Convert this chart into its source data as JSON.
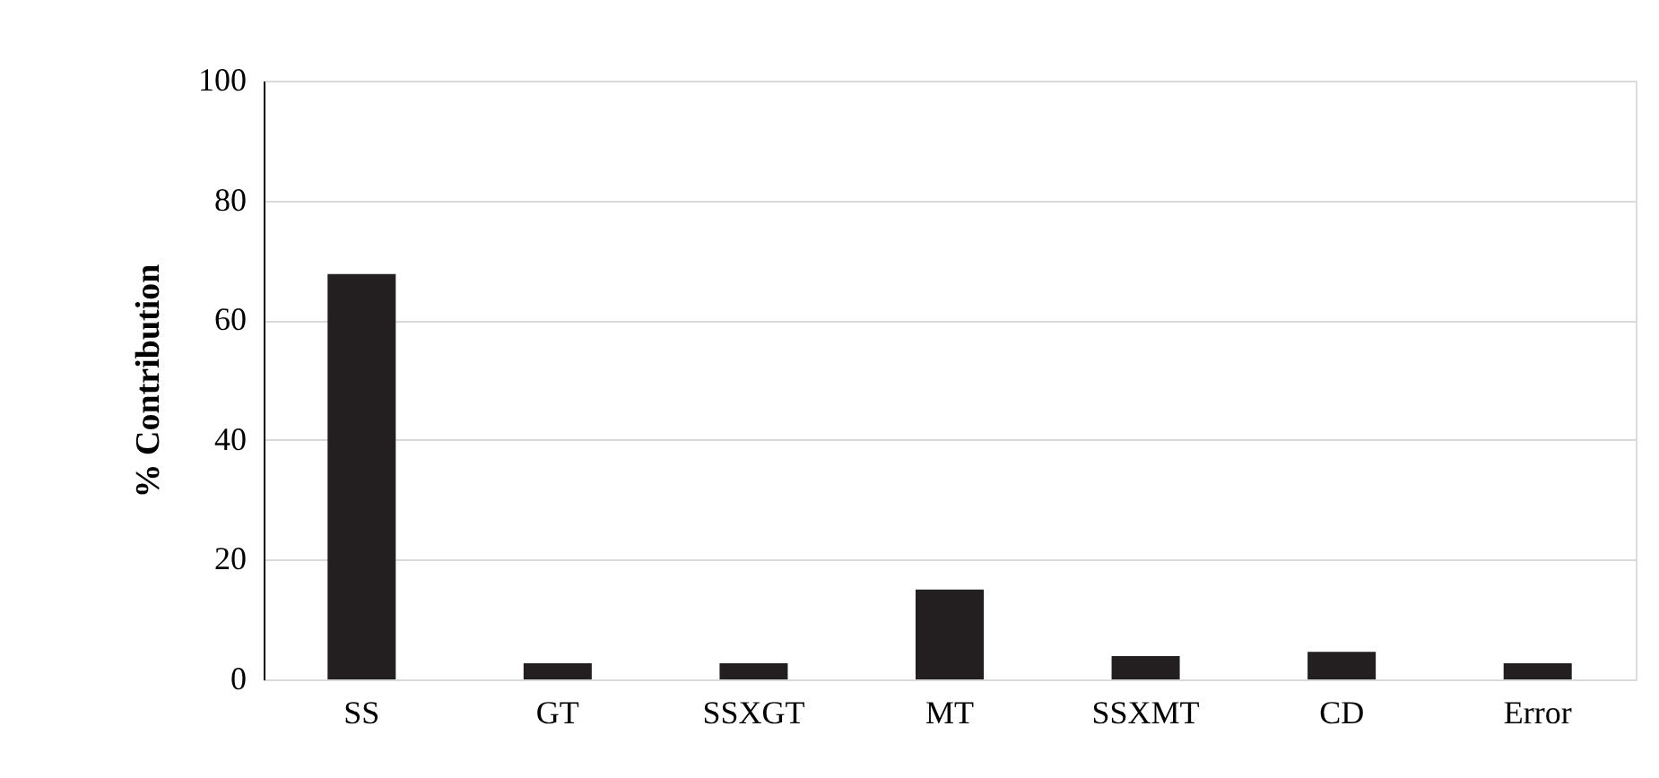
{
  "chart_data": {
    "type": "bar",
    "ylabel": "% Contribution",
    "categories": [
      "SS",
      "GT",
      "SSXGT",
      "MT",
      "SSXMT",
      "CD",
      "Error"
    ],
    "values": [
      67.7,
      2.7,
      2.7,
      15.0,
      3.9,
      4.6,
      2.7
    ],
    "color": "#231f20",
    "ylim": [
      0,
      100
    ],
    "yticks": [
      0,
      20,
      40,
      60,
      80,
      100
    ],
    "grid": "y"
  }
}
